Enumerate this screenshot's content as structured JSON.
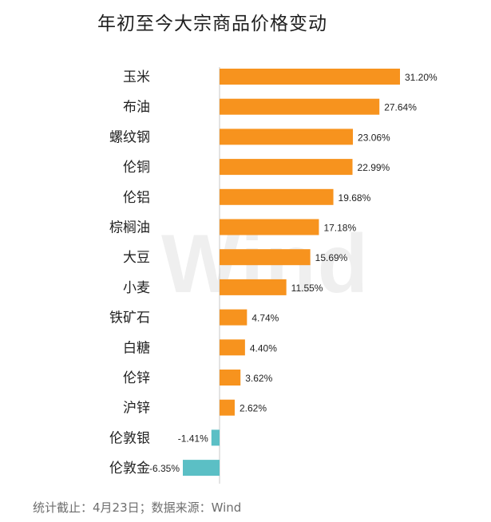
{
  "chart_data": {
    "type": "bar",
    "orientation": "horizontal",
    "title": "年初至今大宗商品价格变动",
    "categories": [
      "玉米",
      "布油",
      "螺纹钢",
      "伦铜",
      "伦铝",
      "棕榈油",
      "大豆",
      "小麦",
      "铁矿石",
      "白糖",
      "伦锌",
      "沪锌",
      "伦敦银",
      "伦敦金"
    ],
    "values": [
      31.2,
      27.64,
      23.06,
      22.99,
      19.68,
      17.18,
      15.69,
      11.55,
      4.74,
      4.4,
      3.62,
      2.62,
      -1.41,
      -6.35
    ],
    "value_labels": [
      "31.20%",
      "27.64%",
      "23.06%",
      "22.99%",
      "19.68%",
      "17.18%",
      "15.69%",
      "11.55%",
      "4.74%",
      "4.40%",
      "3.62%",
      "2.62%",
      "-1.41%",
      "-6.35%"
    ],
    "unit": "%",
    "grid": false,
    "legend": "none",
    "colors": {
      "positive": "#f7931e",
      "negative": "#5bbfc5",
      "axis": "#c8c8c8",
      "label": "#222222"
    }
  },
  "watermark": "Wind",
  "footer": "统计截止：4月23日；数据来源：Wind"
}
